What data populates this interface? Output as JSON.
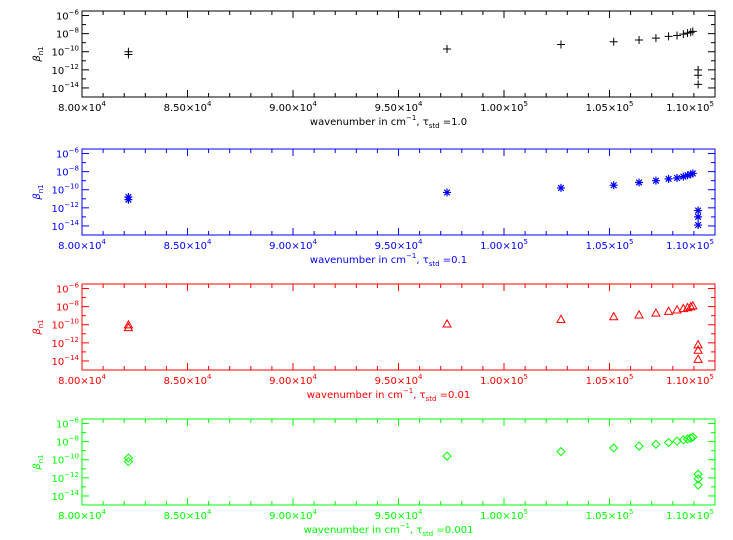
{
  "chart_data": [
    {
      "type": "scatter",
      "color": "#000000",
      "marker": "plus",
      "xlabel": "wavenumber in cm⁻¹, τstd =1.0",
      "xlabel_parts": {
        "main": "wavenumber in cm",
        "exp": "−1",
        "sep": ", ",
        "tau": "τ",
        "sub": "std",
        "rest": " =1.0"
      },
      "ylabel": "βn1",
      "ylabel_parts": {
        "main": "β",
        "sub": "n1"
      },
      "xlim": [
        80000,
        110000
      ],
      "ylim_log10": [
        -15,
        -5.5
      ],
      "x_ticks": [
        {
          "v": 80000,
          "m": "8.00",
          "e": "4"
        },
        {
          "v": 85000,
          "m": "8.50",
          "e": "4"
        },
        {
          "v": 90000,
          "m": "9.00",
          "e": "4"
        },
        {
          "v": 95000,
          "m": "9.50",
          "e": "4"
        },
        {
          "v": 100000,
          "m": "1.00",
          "e": "5"
        },
        {
          "v": 105000,
          "m": "1.05",
          "e": "5"
        },
        {
          "v": 110000,
          "m": "1.10",
          "e": "5"
        }
      ],
      "y_ticks": [
        {
          "v": -6,
          "e": "−6"
        },
        {
          "v": -8,
          "e": "−8"
        },
        {
          "v": -10,
          "e": "−10"
        },
        {
          "v": -12,
          "e": "−12"
        },
        {
          "v": -14,
          "e": "−14"
        }
      ],
      "points": [
        {
          "x": 82200,
          "y": -10.0
        },
        {
          "x": 82200,
          "y": -10.3
        },
        {
          "x": 97300,
          "y": -9.7
        },
        {
          "x": 102700,
          "y": -9.2
        },
        {
          "x": 105200,
          "y": -8.9
        },
        {
          "x": 106400,
          "y": -8.7
        },
        {
          "x": 107200,
          "y": -8.5
        },
        {
          "x": 107800,
          "y": -8.3
        },
        {
          "x": 108200,
          "y": -8.2
        },
        {
          "x": 108500,
          "y": -8.05
        },
        {
          "x": 108700,
          "y": -7.95
        },
        {
          "x": 108850,
          "y": -7.85
        },
        {
          "x": 108950,
          "y": -7.75
        },
        {
          "x": 109200,
          "y": -12.0
        },
        {
          "x": 109200,
          "y": -12.6
        },
        {
          "x": 109200,
          "y": -13.6
        }
      ]
    },
    {
      "type": "scatter",
      "color": "#0000ff",
      "marker": "asterisk",
      "xlabel": "wavenumber in cm⁻¹, τstd =0.1",
      "xlabel_parts": {
        "main": "wavenumber in cm",
        "exp": "−1",
        "sep": ", ",
        "tau": "τ",
        "sub": "std",
        "rest": " =0.1"
      },
      "ylabel": "βn1",
      "ylabel_parts": {
        "main": "β",
        "sub": "n1"
      },
      "xlim": [
        80000,
        110000
      ],
      "ylim_log10": [
        -15,
        -5.5
      ],
      "x_ticks": [
        {
          "v": 80000,
          "m": "8.00",
          "e": "4"
        },
        {
          "v": 85000,
          "m": "8.50",
          "e": "4"
        },
        {
          "v": 90000,
          "m": "9.00",
          "e": "4"
        },
        {
          "v": 95000,
          "m": "9.50",
          "e": "4"
        },
        {
          "v": 100000,
          "m": "1.00",
          "e": "5"
        },
        {
          "v": 105000,
          "m": "1.05",
          "e": "5"
        },
        {
          "v": 110000,
          "m": "1.10",
          "e": "5"
        }
      ],
      "y_ticks": [
        {
          "v": -6,
          "e": "−6"
        },
        {
          "v": -8,
          "e": "−8"
        },
        {
          "v": -10,
          "e": "−10"
        },
        {
          "v": -12,
          "e": "−12"
        },
        {
          "v": -14,
          "e": "−14"
        }
      ],
      "points": [
        {
          "x": 82200,
          "y": -10.8
        },
        {
          "x": 82200,
          "y": -11.1
        },
        {
          "x": 97300,
          "y": -10.3
        },
        {
          "x": 102700,
          "y": -9.8
        },
        {
          "x": 105200,
          "y": -9.5
        },
        {
          "x": 106400,
          "y": -9.2
        },
        {
          "x": 107200,
          "y": -9.0
        },
        {
          "x": 107800,
          "y": -8.8
        },
        {
          "x": 108200,
          "y": -8.7
        },
        {
          "x": 108500,
          "y": -8.55
        },
        {
          "x": 108700,
          "y": -8.4
        },
        {
          "x": 108850,
          "y": -8.3
        },
        {
          "x": 108950,
          "y": -8.2
        },
        {
          "x": 109200,
          "y": -12.3
        },
        {
          "x": 109200,
          "y": -13.0
        },
        {
          "x": 109200,
          "y": -13.9
        }
      ]
    },
    {
      "type": "scatter",
      "color": "#ff0000",
      "marker": "triangle",
      "xlabel": "wavenumber in cm⁻¹, τstd =0.01",
      "xlabel_parts": {
        "main": "wavenumber in cm",
        "exp": "−1",
        "sep": ", ",
        "tau": "τ",
        "sub": "std",
        "rest": " =0.01"
      },
      "ylabel": "βn1",
      "ylabel_parts": {
        "main": "β",
        "sub": "n1"
      },
      "xlim": [
        80000,
        110000
      ],
      "ylim_log10": [
        -15,
        -5.5
      ],
      "x_ticks": [
        {
          "v": 80000,
          "m": "8.00",
          "e": "4"
        },
        {
          "v": 85000,
          "m": "8.50",
          "e": "4"
        },
        {
          "v": 90000,
          "m": "9.00",
          "e": "4"
        },
        {
          "v": 95000,
          "m": "9.50",
          "e": "4"
        },
        {
          "v": 100000,
          "m": "1.00",
          "e": "5"
        },
        {
          "v": 105000,
          "m": "1.05",
          "e": "5"
        },
        {
          "v": 110000,
          "m": "1.10",
          "e": "5"
        }
      ],
      "y_ticks": [
        {
          "v": -6,
          "e": "−6"
        },
        {
          "v": -8,
          "e": "−8"
        },
        {
          "v": -10,
          "e": "−10"
        },
        {
          "v": -12,
          "e": "−12"
        },
        {
          "v": -14,
          "e": "−14"
        }
      ],
      "points": [
        {
          "x": 82200,
          "y": -10.0
        },
        {
          "x": 82200,
          "y": -10.3
        },
        {
          "x": 97300,
          "y": -9.9
        },
        {
          "x": 102700,
          "y": -9.4
        },
        {
          "x": 105200,
          "y": -9.1
        },
        {
          "x": 106400,
          "y": -8.9
        },
        {
          "x": 107200,
          "y": -8.7
        },
        {
          "x": 107800,
          "y": -8.5
        },
        {
          "x": 108200,
          "y": -8.35
        },
        {
          "x": 108500,
          "y": -8.2
        },
        {
          "x": 108700,
          "y": -8.1
        },
        {
          "x": 108850,
          "y": -8.0
        },
        {
          "x": 108950,
          "y": -7.9
        },
        {
          "x": 109200,
          "y": -12.2
        },
        {
          "x": 109200,
          "y": -12.8
        },
        {
          "x": 109200,
          "y": -13.8
        }
      ]
    },
    {
      "type": "scatter",
      "color": "#00ff00",
      "marker": "diamond",
      "xlabel": "wavenumber in cm⁻¹, τstd =0.001",
      "xlabel_parts": {
        "main": "wavenumber in cm",
        "exp": "−1",
        "sep": ", ",
        "tau": "τ",
        "sub": "std",
        "rest": " =0.001"
      },
      "ylabel": "βn1",
      "ylabel_parts": {
        "main": "β",
        "sub": "n1"
      },
      "xlim": [
        80000,
        110000
      ],
      "ylim_log10": [
        -15,
        -5.5
      ],
      "x_ticks": [
        {
          "v": 80000,
          "m": "8.00",
          "e": "4"
        },
        {
          "v": 85000,
          "m": "8.50",
          "e": "4"
        },
        {
          "v": 90000,
          "m": "9.00",
          "e": "4"
        },
        {
          "v": 95000,
          "m": "9.50",
          "e": "4"
        },
        {
          "v": 100000,
          "m": "1.00",
          "e": "5"
        },
        {
          "v": 105000,
          "m": "1.05",
          "e": "5"
        },
        {
          "v": 110000,
          "m": "1.10",
          "e": "5"
        }
      ],
      "y_ticks": [
        {
          "v": -6,
          "e": "−6"
        },
        {
          "v": -8,
          "e": "−8"
        },
        {
          "v": -10,
          "e": "−10"
        },
        {
          "v": -12,
          "e": "−12"
        },
        {
          "v": -14,
          "e": "−14"
        }
      ],
      "points": [
        {
          "x": 82200,
          "y": -9.8
        },
        {
          "x": 82200,
          "y": -10.2
        },
        {
          "x": 97300,
          "y": -9.6
        },
        {
          "x": 102700,
          "y": -9.1
        },
        {
          "x": 105200,
          "y": -8.7
        },
        {
          "x": 106400,
          "y": -8.5
        },
        {
          "x": 107200,
          "y": -8.3
        },
        {
          "x": 107800,
          "y": -8.1
        },
        {
          "x": 108200,
          "y": -7.95
        },
        {
          "x": 108500,
          "y": -7.8
        },
        {
          "x": 108700,
          "y": -7.7
        },
        {
          "x": 108850,
          "y": -7.6
        },
        {
          "x": 108950,
          "y": -7.5
        },
        {
          "x": 109200,
          "y": -11.6
        },
        {
          "x": 109200,
          "y": -12.1
        },
        {
          "x": 109200,
          "y": -12.8
        }
      ]
    }
  ]
}
